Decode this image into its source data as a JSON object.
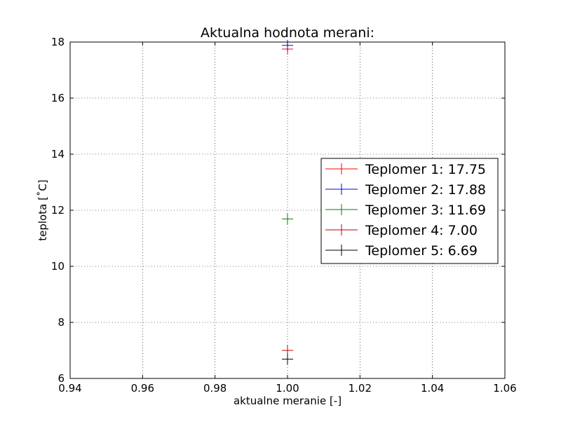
{
  "chart_data": {
    "type": "scatter",
    "title": "Aktualna hodnota merani:",
    "xlabel": "aktualne meranie [-]",
    "ylabel": "teplota [˚C]",
    "xlim": [
      0.94,
      1.06
    ],
    "ylim": [
      6,
      18
    ],
    "xticks": [
      0.94,
      0.96,
      0.98,
      1.0,
      1.02,
      1.04,
      1.06
    ],
    "xtick_labels": [
      "0.94",
      "0.96",
      "0.98",
      "1.00",
      "1.02",
      "1.04",
      "1.06"
    ],
    "yticks": [
      6,
      8,
      10,
      12,
      14,
      16,
      18
    ],
    "ytick_labels": [
      "6",
      "8",
      "10",
      "12",
      "14",
      "16",
      "18"
    ],
    "grid": true,
    "legend_position": "center-right",
    "marker": "plus",
    "series": [
      {
        "name": "Teplomer 1: 17.75",
        "color": "#ff0000",
        "x": [
          1.0
        ],
        "y": [
          17.75
        ]
      },
      {
        "name": "Teplomer 2: 17.88",
        "color": "#0000ff",
        "x": [
          1.0
        ],
        "y": [
          17.88
        ]
      },
      {
        "name": "Teplomer 3: 11.69",
        "color": "#008000",
        "x": [
          1.0
        ],
        "y": [
          11.69
        ]
      },
      {
        "name": "Teplomer 4: 7.00",
        "color": "#bf0000",
        "x": [
          1.0
        ],
        "y": [
          7.0
        ]
      },
      {
        "name": "Teplomer 5: 6.69",
        "color": "#000000",
        "x": [
          1.0
        ],
        "y": [
          6.69
        ]
      }
    ]
  }
}
